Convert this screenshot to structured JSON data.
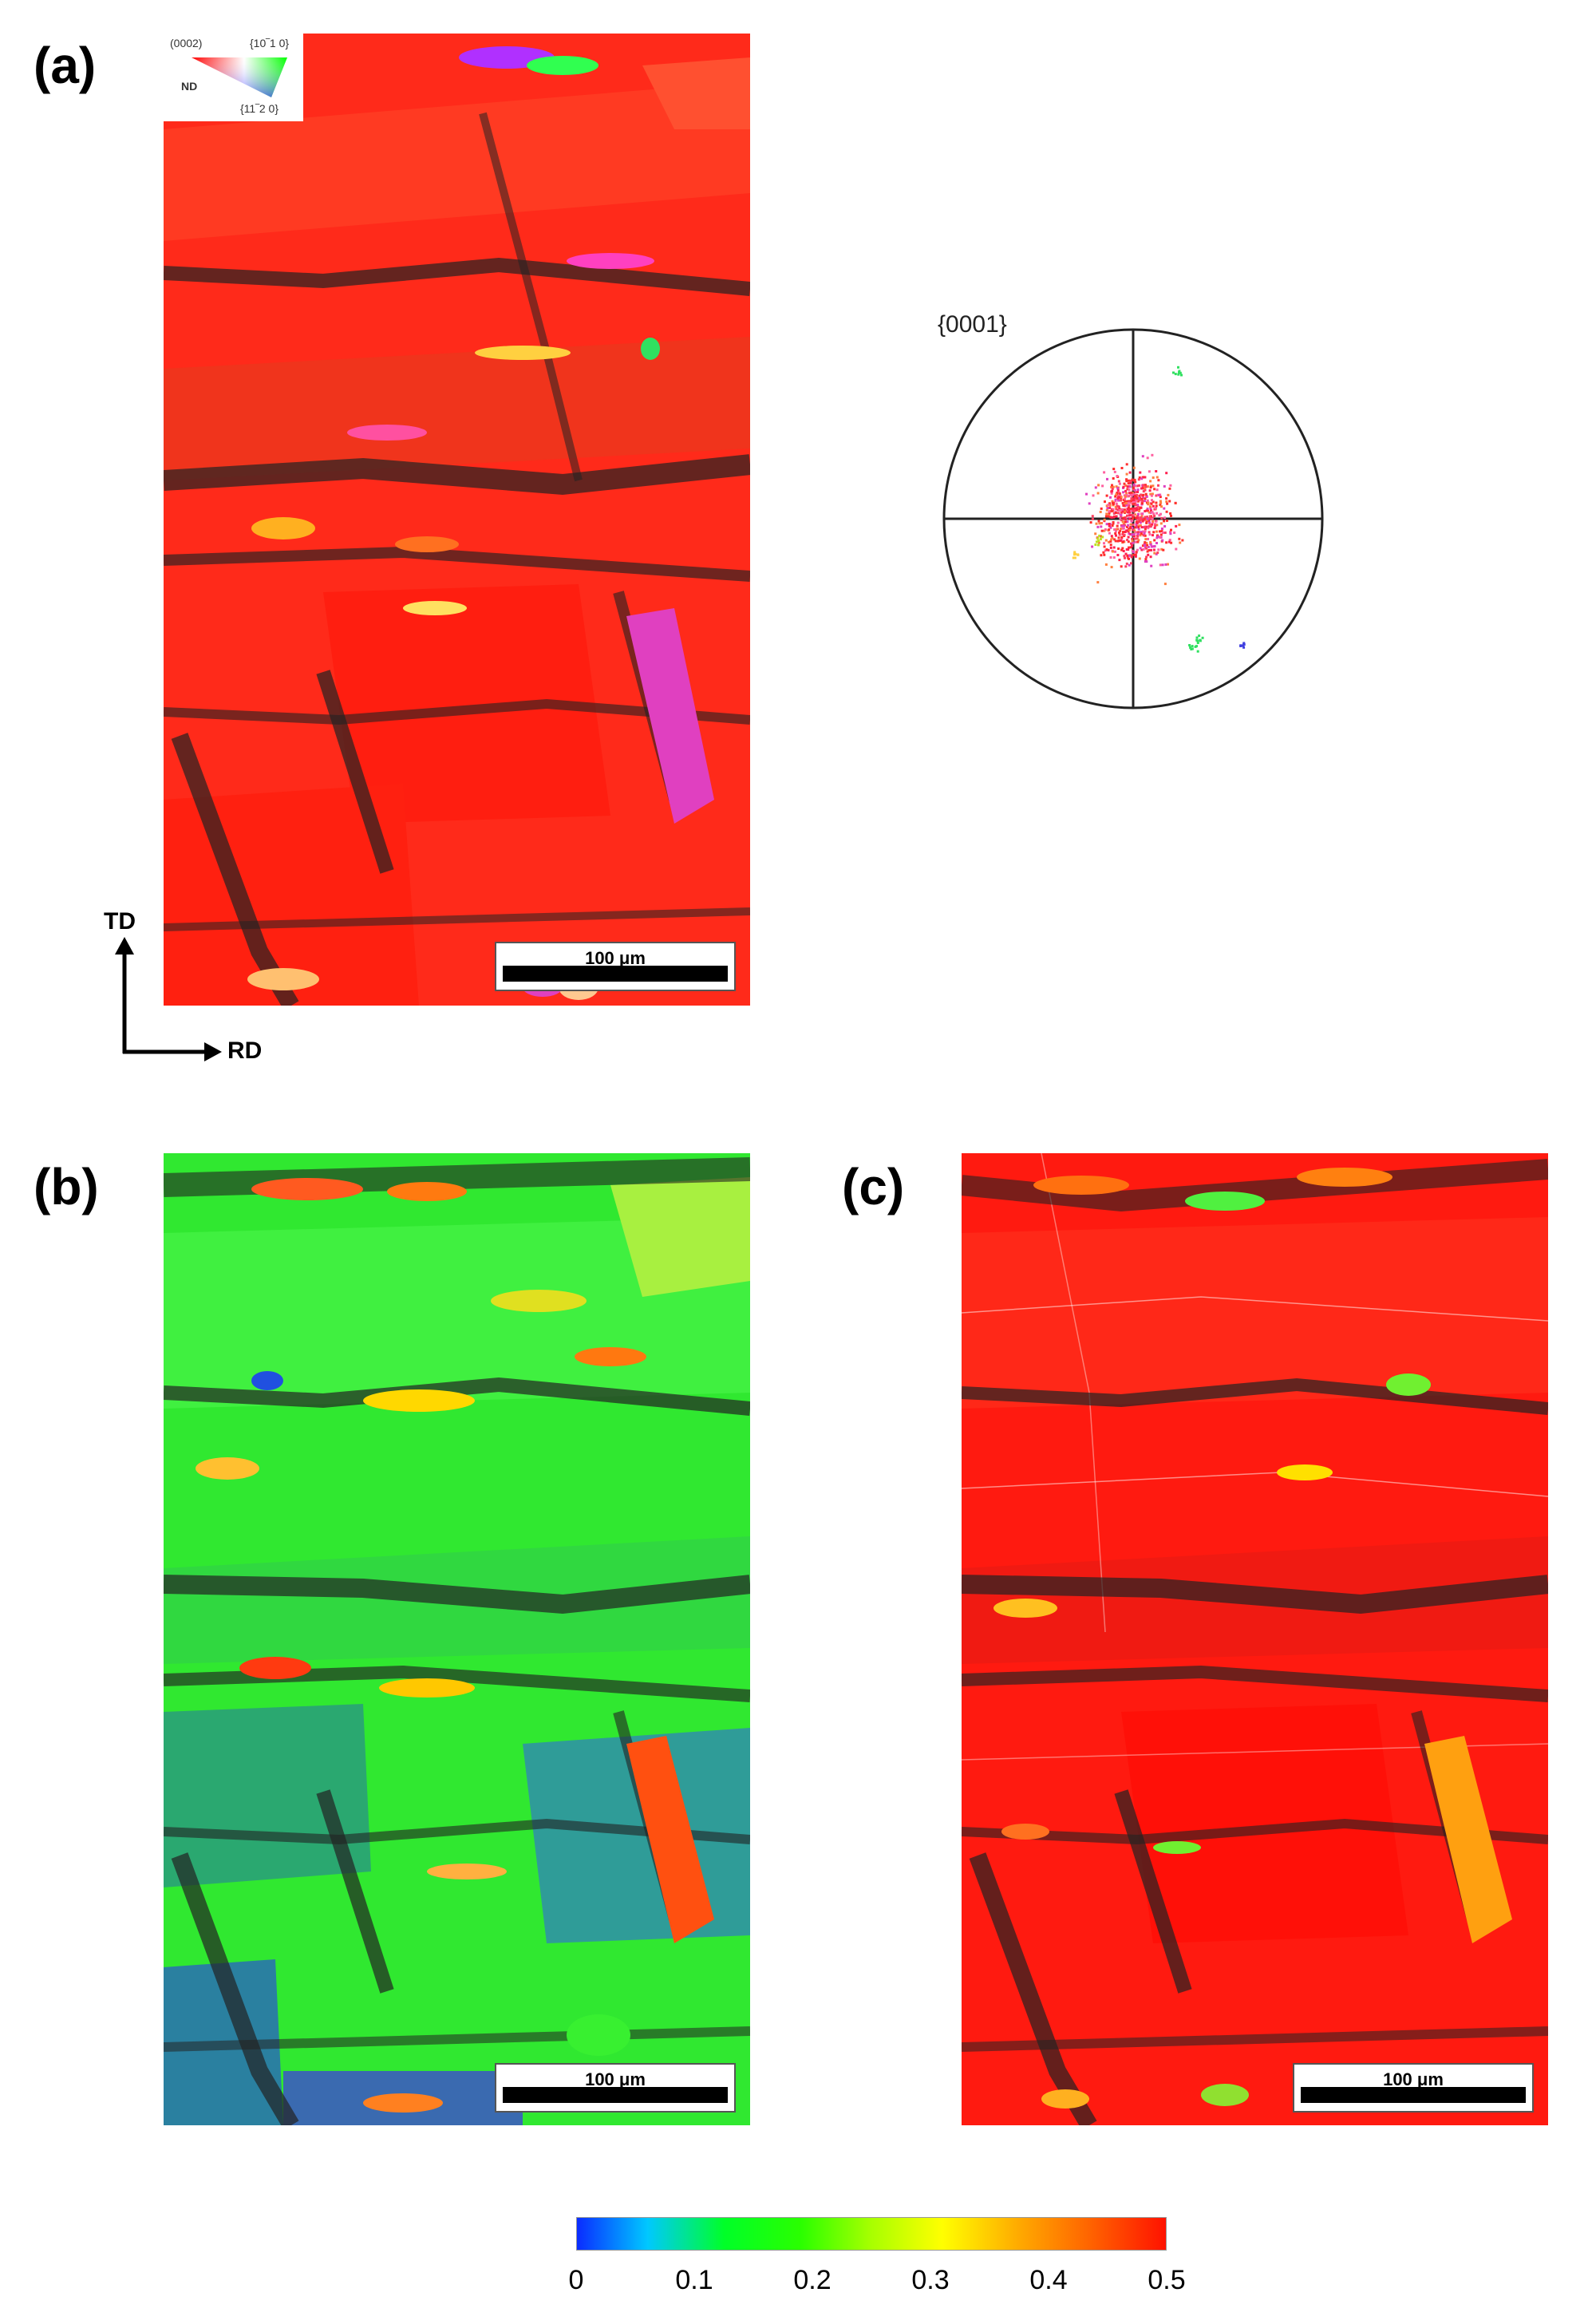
{
  "panels": {
    "a": {
      "label": "(a)"
    },
    "b": {
      "label": "(b)"
    },
    "c": {
      "label": "(c)"
    }
  },
  "scale_bar": {
    "text": "100 μm"
  },
  "ipf_key": {
    "corner_0001": "(0002)",
    "corner_10_10": "{10‾1 0}",
    "corner_11_20": "{11‾2 0}",
    "nd": "ND"
  },
  "axes": {
    "td": "TD",
    "rd": "RD"
  },
  "pole_figure": {
    "label": "{0001}"
  },
  "colorbar": {
    "ticks": [
      "0",
      "0.1",
      "0.2",
      "0.3",
      "0.4",
      "0.5"
    ],
    "colors": [
      "#0a2cff",
      "#00c8ff",
      "#00ff28",
      "#ffff00",
      "#ff6400",
      "#ff1200"
    ]
  },
  "colors": {
    "map_a_base": "#ff2a1a",
    "map_b_base": "#30e830",
    "map_c_base": "#ff1a10",
    "grain_boundary": "#1a1a1a"
  }
}
